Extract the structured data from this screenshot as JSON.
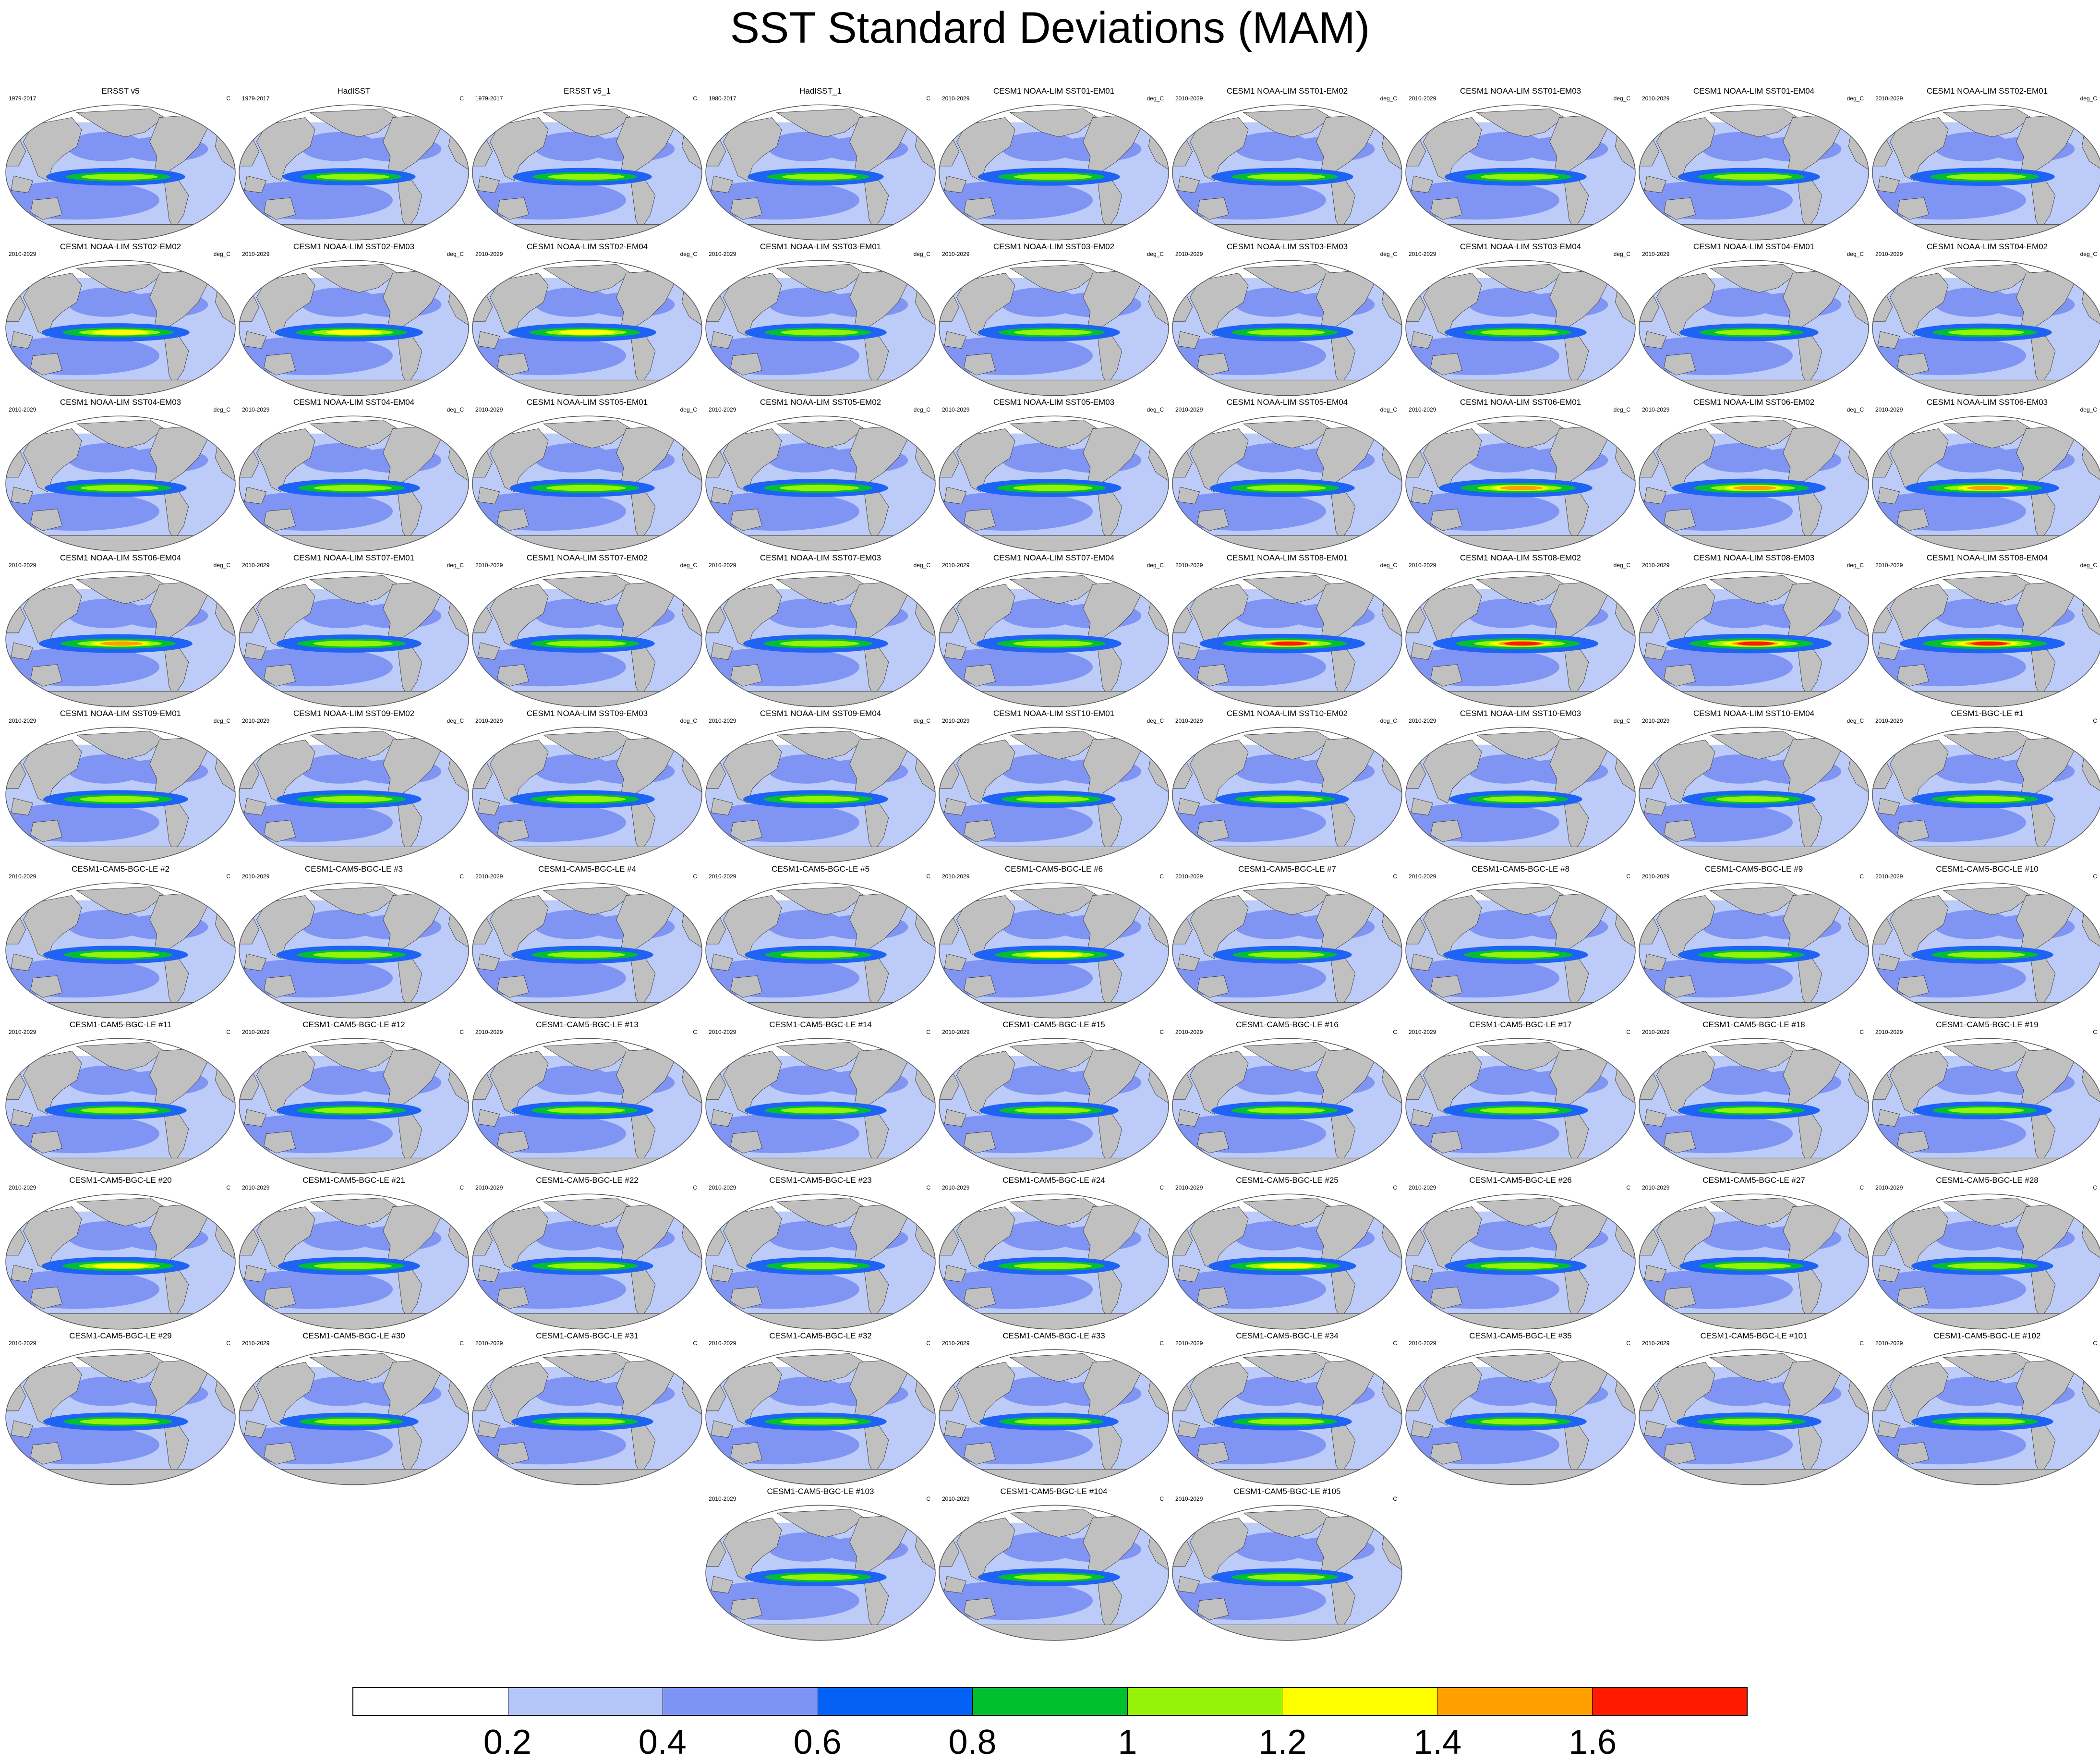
{
  "title": "SST Standard Deviations (MAM)",
  "colors": {
    "ocean_low": "#bccbf7",
    "ocean_mid": "#8094f4",
    "ocean_strong": "#1e63f4",
    "land": "#c0c0c0",
    "map_edge": "#555555"
  },
  "panels": [
    {
      "title": "ERSST v5",
      "left": "1979-2017",
      "right": "C",
      "intensity": 0.55
    },
    {
      "title": "HadISST",
      "left": "1979-2017",
      "right": "C",
      "intensity": 0.45
    },
    {
      "title": "ERSST v5_1",
      "left": "1979-2017",
      "right": "C",
      "intensity": 0.55
    },
    {
      "title": "HadISST_1",
      "left": "1980-2017",
      "right": "C",
      "intensity": 0.5
    },
    {
      "title": "CESM1 NOAA-LIM SST01-EM01",
      "left": "2010-2029",
      "right": "deg_C",
      "intensity": 0.6
    },
    {
      "title": "CESM1 NOAA-LIM SST01-EM02",
      "left": "2010-2029",
      "right": "deg_C",
      "intensity": 0.6
    },
    {
      "title": "CESM1 NOAA-LIM SST01-EM03",
      "left": "2010-2029",
      "right": "deg_C",
      "intensity": 0.6
    },
    {
      "title": "CESM1 NOAA-LIM SST01-EM04",
      "left": "2010-2029",
      "right": "deg_C",
      "intensity": 0.6
    },
    {
      "title": "CESM1 NOAA-LIM SST02-EM01",
      "left": "2010-2029",
      "right": "deg_C",
      "intensity": 0.65
    },
    {
      "title": "CESM1 NOAA-LIM SST02-EM02",
      "left": "2010-2029",
      "right": "deg_C",
      "intensity": 0.7
    },
    {
      "title": "CESM1 NOAA-LIM SST02-EM03",
      "left": "2010-2029",
      "right": "deg_C",
      "intensity": 0.7
    },
    {
      "title": "CESM1 NOAA-LIM SST02-EM04",
      "left": "2010-2029",
      "right": "deg_C",
      "intensity": 0.7
    },
    {
      "title": "CESM1 NOAA-LIM SST03-EM01",
      "left": "2010-2029",
      "right": "deg_C",
      "intensity": 0.6
    },
    {
      "title": "CESM1 NOAA-LIM SST03-EM02",
      "left": "2010-2029",
      "right": "deg_C",
      "intensity": 0.6
    },
    {
      "title": "CESM1 NOAA-LIM SST03-EM03",
      "left": "2010-2029",
      "right": "deg_C",
      "intensity": 0.6
    },
    {
      "title": "CESM1 NOAA-LIM SST03-EM04",
      "left": "2010-2029",
      "right": "deg_C",
      "intensity": 0.6
    },
    {
      "title": "CESM1 NOAA-LIM SST04-EM01",
      "left": "2010-2029",
      "right": "deg_C",
      "intensity": 0.55
    },
    {
      "title": "CESM1 NOAA-LIM SST04-EM02",
      "left": "2010-2029",
      "right": "deg_C",
      "intensity": 0.55
    },
    {
      "title": "CESM1 NOAA-LIM SST04-EM03",
      "left": "2010-2029",
      "right": "deg_C",
      "intensity": 0.6
    },
    {
      "title": "CESM1 NOAA-LIM SST04-EM04",
      "left": "2010-2029",
      "right": "deg_C",
      "intensity": 0.6
    },
    {
      "title": "CESM1 NOAA-LIM SST05-EM01",
      "left": "2010-2029",
      "right": "deg_C",
      "intensity": 0.65
    },
    {
      "title": "CESM1 NOAA-LIM SST05-EM02",
      "left": "2010-2029",
      "right": "deg_C",
      "intensity": 0.65
    },
    {
      "title": "CESM1 NOAA-LIM SST05-EM03",
      "left": "2010-2029",
      "right": "deg_C",
      "intensity": 0.65
    },
    {
      "title": "CESM1 NOAA-LIM SST05-EM04",
      "left": "2010-2029",
      "right": "deg_C",
      "intensity": 0.65
    },
    {
      "title": "CESM1 NOAA-LIM SST06-EM01",
      "left": "2010-2029",
      "right": "deg_C",
      "intensity": 0.8
    },
    {
      "title": "CESM1 NOAA-LIM SST06-EM02",
      "left": "2010-2029",
      "right": "deg_C",
      "intensity": 0.8
    },
    {
      "title": "CESM1 NOAA-LIM SST06-EM03",
      "left": "2010-2029",
      "right": "deg_C",
      "intensity": 0.8
    },
    {
      "title": "CESM1 NOAA-LIM SST06-EM04",
      "left": "2010-2029",
      "right": "deg_C",
      "intensity": 0.8
    },
    {
      "title": "CESM1 NOAA-LIM SST07-EM01",
      "left": "2010-2029",
      "right": "deg_C",
      "intensity": 0.65
    },
    {
      "title": "CESM1 NOAA-LIM SST07-EM02",
      "left": "2010-2029",
      "right": "deg_C",
      "intensity": 0.65
    },
    {
      "title": "CESM1 NOAA-LIM SST07-EM03",
      "left": "2010-2029",
      "right": "deg_C",
      "intensity": 0.65
    },
    {
      "title": "CESM1 NOAA-LIM SST07-EM04",
      "left": "2010-2029",
      "right": "deg_C",
      "intensity": 0.65
    },
    {
      "title": "CESM1 NOAA-LIM SST08-EM01",
      "left": "2010-2029",
      "right": "deg_C",
      "intensity": 1.0
    },
    {
      "title": "CESM1 NOAA-LIM SST08-EM02",
      "left": "2010-2029",
      "right": "deg_C",
      "intensity": 1.0
    },
    {
      "title": "CESM1 NOAA-LIM SST08-EM03",
      "left": "2010-2029",
      "right": "deg_C",
      "intensity": 1.0
    },
    {
      "title": "CESM1 NOAA-LIM SST08-EM04",
      "left": "2010-2029",
      "right": "deg_C",
      "intensity": 1.0
    },
    {
      "title": "CESM1 NOAA-LIM SST09-EM01",
      "left": "2010-2029",
      "right": "deg_C",
      "intensity": 0.65
    },
    {
      "title": "CESM1 NOAA-LIM SST09-EM02",
      "left": "2010-2029",
      "right": "deg_C",
      "intensity": 0.65
    },
    {
      "title": "CESM1 NOAA-LIM SST09-EM03",
      "left": "2010-2029",
      "right": "deg_C",
      "intensity": 0.65
    },
    {
      "title": "CESM1 NOAA-LIM SST09-EM04",
      "left": "2010-2029",
      "right": "deg_C",
      "intensity": 0.65
    },
    {
      "title": "CESM1 NOAA-LIM SST10-EM01",
      "left": "2010-2029",
      "right": "deg_C",
      "intensity": 0.45
    },
    {
      "title": "CESM1 NOAA-LIM SST10-EM02",
      "left": "2010-2029",
      "right": "deg_C",
      "intensity": 0.45
    },
    {
      "title": "CESM1 NOAA-LIM SST10-EM03",
      "left": "2010-2029",
      "right": "deg_C",
      "intensity": 0.45
    },
    {
      "title": "CESM1 NOAA-LIM SST10-EM04",
      "left": "2010-2029",
      "right": "deg_C",
      "intensity": 0.45
    },
    {
      "title": "CESM1-BGC-LE #1",
      "left": "2010-2029",
      "right": "C",
      "intensity": 0.6
    },
    {
      "title": "CESM1-CAM5-BGC-LE #2",
      "left": "2010-2029",
      "right": "C",
      "intensity": 0.65
    },
    {
      "title": "CESM1-CAM5-BGC-LE #3",
      "left": "2010-2029",
      "right": "C",
      "intensity": 0.65
    },
    {
      "title": "CESM1-CAM5-BGC-LE #4",
      "left": "2010-2029",
      "right": "C",
      "intensity": 0.6
    },
    {
      "title": "CESM1-CAM5-BGC-LE #5",
      "left": "2010-2029",
      "right": "C",
      "intensity": 0.6
    },
    {
      "title": "CESM1-CAM5-BGC-LE #6",
      "left": "2010-2029",
      "right": "C",
      "intensity": 0.75
    },
    {
      "title": "CESM1-CAM5-BGC-LE #7",
      "left": "2010-2029",
      "right": "C",
      "intensity": 0.55
    },
    {
      "title": "CESM1-CAM5-BGC-LE #8",
      "left": "2010-2029",
      "right": "C",
      "intensity": 0.65
    },
    {
      "title": "CESM1-CAM5-BGC-LE #9",
      "left": "2010-2029",
      "right": "C",
      "intensity": 0.6
    },
    {
      "title": "CESM1-CAM5-BGC-LE #10",
      "left": "2010-2029",
      "right": "C",
      "intensity": 0.6
    },
    {
      "title": "CESM1-CAM5-BGC-LE #11",
      "left": "2010-2029",
      "right": "C",
      "intensity": 0.6
    },
    {
      "title": "CESM1-CAM5-BGC-LE #12",
      "left": "2010-2029",
      "right": "C",
      "intensity": 0.65
    },
    {
      "title": "CESM1-CAM5-BGC-LE #13",
      "left": "2010-2029",
      "right": "C",
      "intensity": 0.6
    },
    {
      "title": "CESM1-CAM5-BGC-LE #14",
      "left": "2010-2029",
      "right": "C",
      "intensity": 0.6
    },
    {
      "title": "CESM1-CAM5-BGC-LE #15",
      "left": "2010-2029",
      "right": "C",
      "intensity": 0.55
    },
    {
      "title": "CESM1-CAM5-BGC-LE #16",
      "left": "2010-2029",
      "right": "C",
      "intensity": 0.6
    },
    {
      "title": "CESM1-CAM5-BGC-LE #17",
      "left": "2010-2029",
      "right": "C",
      "intensity": 0.65
    },
    {
      "title": "CESM1-CAM5-BGC-LE #18",
      "left": "2010-2029",
      "right": "C",
      "intensity": 0.6
    },
    {
      "title": "CESM1-CAM5-BGC-LE #19",
      "left": "2010-2029",
      "right": "C",
      "intensity": 0.55
    },
    {
      "title": "CESM1-CAM5-BGC-LE #20",
      "left": "2010-2029",
      "right": "C",
      "intensity": 0.7
    },
    {
      "title": "CESM1-CAM5-BGC-LE #21",
      "left": "2010-2029",
      "right": "C",
      "intensity": 0.6
    },
    {
      "title": "CESM1-CAM5-BGC-LE #22",
      "left": "2010-2029",
      "right": "C",
      "intensity": 0.6
    },
    {
      "title": "CESM1-CAM5-BGC-LE #23",
      "left": "2010-2029",
      "right": "C",
      "intensity": 0.55
    },
    {
      "title": "CESM1-CAM5-BGC-LE #24",
      "left": "2010-2029",
      "right": "C",
      "intensity": 0.6
    },
    {
      "title": "CESM1-CAM5-BGC-LE #25",
      "left": "2010-2029",
      "right": "C",
      "intensity": 0.7
    },
    {
      "title": "CESM1-CAM5-BGC-LE #26",
      "left": "2010-2029",
      "right": "C",
      "intensity": 0.6
    },
    {
      "title": "CESM1-CAM5-BGC-LE #27",
      "left": "2010-2029",
      "right": "C",
      "intensity": 0.55
    },
    {
      "title": "CESM1-CAM5-BGC-LE #28",
      "left": "2010-2029",
      "right": "C",
      "intensity": 0.6
    },
    {
      "title": "CESM1-CAM5-BGC-LE #29",
      "left": "2010-2029",
      "right": "C",
      "intensity": 0.65
    },
    {
      "title": "CESM1-CAM5-BGC-LE #30",
      "left": "2010-2029",
      "right": "C",
      "intensity": 0.55
    },
    {
      "title": "CESM1-CAM5-BGC-LE #31",
      "left": "2010-2029",
      "right": "C",
      "intensity": 0.6
    },
    {
      "title": "CESM1-CAM5-BGC-LE #32",
      "left": "2010-2029",
      "right": "C",
      "intensity": 0.6
    },
    {
      "title": "CESM1-CAM5-BGC-LE #33",
      "left": "2010-2029",
      "right": "C",
      "intensity": 0.55
    },
    {
      "title": "CESM1-CAM5-BGC-LE #34",
      "left": "2010-2029",
      "right": "C",
      "intensity": 0.55
    },
    {
      "title": "CESM1-CAM5-BGC-LE #35",
      "left": "2010-2029",
      "right": "C",
      "intensity": 0.6
    },
    {
      "title": "CESM1-CAM5-BGC-LE #101",
      "left": "2010-2029",
      "right": "C",
      "intensity": 0.65
    },
    {
      "title": "CESM1-CAM5-BGC-LE #102",
      "left": "2010-2029",
      "right": "C",
      "intensity": 0.6
    },
    {
      "title": "CESM1-CAM5-BGC-LE #103",
      "left": "2010-2029",
      "right": "C",
      "intensity": 0.6
    },
    {
      "title": "CESM1-CAM5-BGC-LE #104",
      "left": "2010-2029",
      "right": "C",
      "intensity": 0.6
    },
    {
      "title": "CESM1-CAM5-BGC-LE #105",
      "left": "2010-2029",
      "right": "C",
      "intensity": 0.6
    }
  ],
  "colorbar": {
    "colors": [
      "#ffffff",
      "#b4c5f8",
      "#7e94f4",
      "#0461f5",
      "#00c030",
      "#96f208",
      "#ffff00",
      "#ffa000",
      "#ff1a00"
    ],
    "tick_labels": [
      "0.2",
      "0.4",
      "0.6",
      "0.8",
      "1",
      "1.2",
      "1.4",
      "1.6"
    ]
  }
}
